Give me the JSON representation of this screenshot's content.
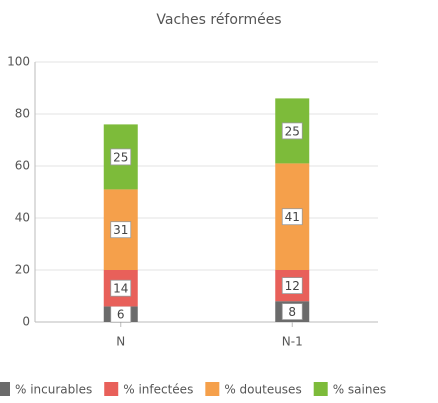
{
  "chart_data": {
    "type": "stacked_bar",
    "title": "Vaches réformées",
    "categories": [
      "N",
      "N-1"
    ],
    "series": [
      {
        "name": "% incurables",
        "color": "#6b6b6b",
        "values": [
          6,
          8
        ]
      },
      {
        "name": "% infectées",
        "color": "#e8605a",
        "values": [
          14,
          12
        ]
      },
      {
        "name": "% douteuses",
        "color": "#f5a04b",
        "values": [
          31,
          41
        ]
      },
      {
        "name": "% saines",
        "color": "#7dbb3a",
        "values": [
          25,
          25
        ]
      }
    ],
    "ylim": [
      0,
      100
    ],
    "yticks": [
      0,
      20,
      40,
      60,
      80,
      100
    ],
    "grid": true,
    "legend": "bottom"
  }
}
